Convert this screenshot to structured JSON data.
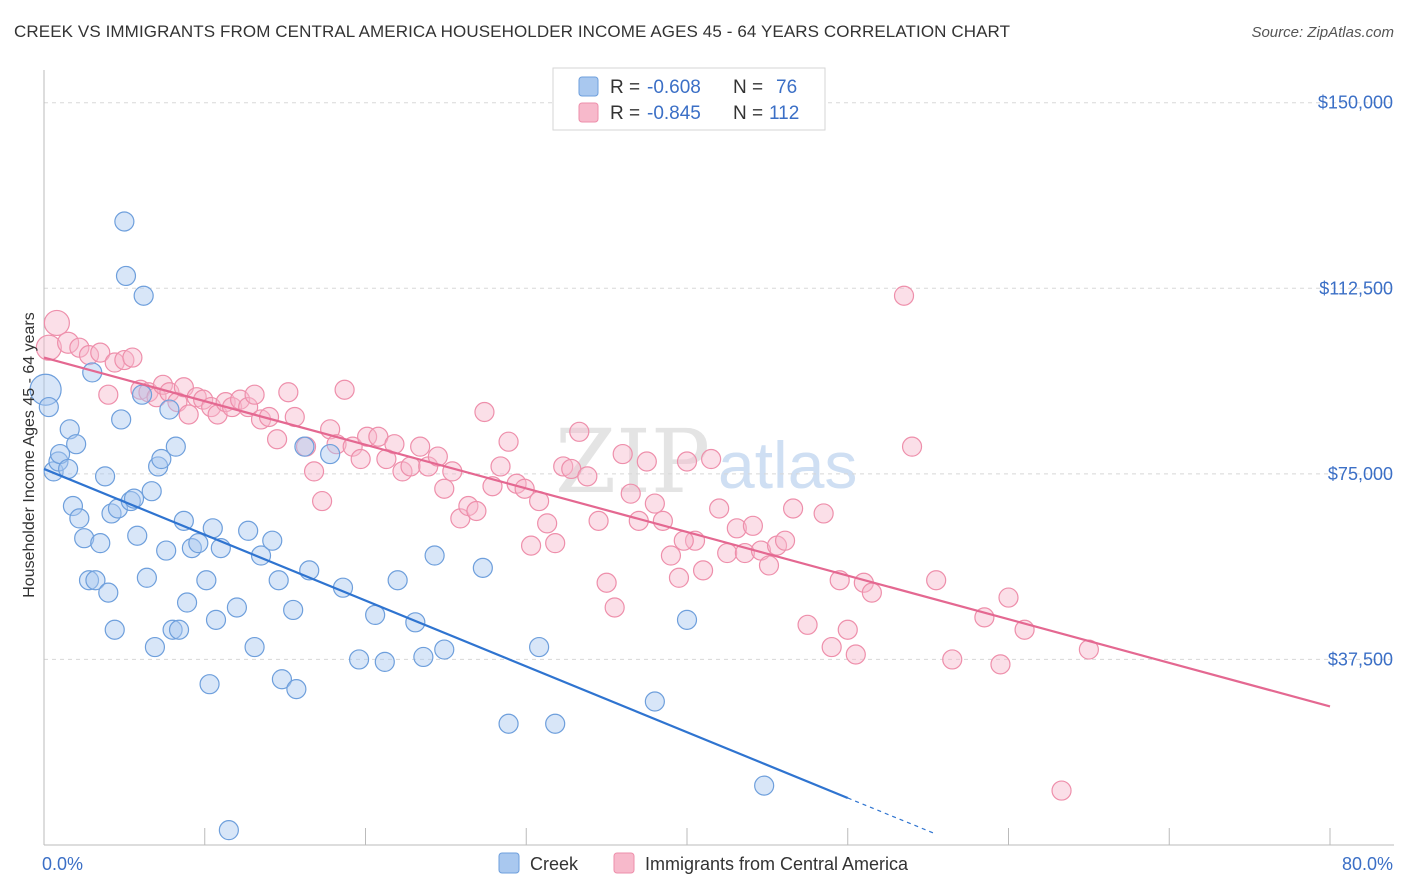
{
  "header": {
    "title": "CREEK VS IMMIGRANTS FROM CENTRAL AMERICA HOUSEHOLDER INCOME AGES 45 - 64 YEARS CORRELATION CHART",
    "source": "Source: ZipAtlas.com"
  },
  "watermark": {
    "zip": "ZIP",
    "atlas": "atlas"
  },
  "legend_top": {
    "rows": [
      {
        "r_label": "R = ",
        "r_value": "-0.608",
        "n_label": "N = ",
        "n_value": "76"
      },
      {
        "r_label": "R = ",
        "r_value": "-0.845",
        "n_label": "N = ",
        "n_value": "112"
      }
    ]
  },
  "legend_bottom": {
    "series1": "Creek",
    "series2": "Immigrants from Central America"
  },
  "colors": {
    "creek_fill": "#a9c8ef",
    "creek_stroke": "#6e9fdc",
    "creek_line": "#2f74d0",
    "ica_fill": "#f7b9cb",
    "ica_stroke": "#ee8fab",
    "ica_line": "#e46891",
    "tick_text": "#3b6fc6",
    "grid": "#d8d8d8"
  },
  "chart_data": {
    "type": "scatter",
    "title": "CREEK VS IMMIGRANTS FROM CENTRAL AMERICA HOUSEHOLDER INCOME AGES 45 - 64 YEARS CORRELATION CHART",
    "xlabel": "",
    "ylabel": "Householder Income Ages 45 - 64 years",
    "xlim": [
      0,
      80
    ],
    "ylim": [
      0,
      155000
    ],
    "x_tick_labels": [
      "0.0%",
      "80.0%"
    ],
    "y_ticks": [
      37500,
      75000,
      112500,
      150000
    ],
    "y_tick_labels": [
      "$37,500",
      "$75,000",
      "$112,500",
      "$150,000"
    ],
    "grid": true,
    "legend_position": "top-center",
    "series": [
      {
        "name": "Creek",
        "R": -0.608,
        "N": 76,
        "trend": {
          "x0": 0,
          "y0": 76000,
          "x1": 50,
          "y1": 9500,
          "dashed_to_x": 55.5,
          "dashed_to_y": 2200
        },
        "points": [
          [
            0.1,
            92000,
            26
          ],
          [
            0.3,
            88500,
            14
          ],
          [
            0.6,
            75500,
            14
          ],
          [
            0.9,
            77500,
            14
          ],
          [
            1.0,
            79000,
            14
          ],
          [
            1.5,
            76000,
            14
          ],
          [
            1.6,
            84000,
            14
          ],
          [
            1.8,
            68500,
            14
          ],
          [
            2.0,
            81000,
            14
          ],
          [
            2.2,
            66000,
            14
          ],
          [
            2.5,
            62000,
            14
          ],
          [
            2.8,
            53500,
            14
          ],
          [
            3.0,
            95500,
            14
          ],
          [
            3.2,
            53500,
            14
          ],
          [
            3.5,
            61000,
            14
          ],
          [
            3.8,
            74500,
            14
          ],
          [
            4.0,
            51000,
            14
          ],
          [
            4.2,
            67000,
            14
          ],
          [
            4.4,
            43500,
            14
          ],
          [
            4.6,
            68000,
            14
          ],
          [
            4.8,
            86000,
            14
          ],
          [
            5.0,
            126000,
            14
          ],
          [
            5.1,
            115000,
            14
          ],
          [
            5.4,
            69500,
            14
          ],
          [
            5.6,
            70000,
            14
          ],
          [
            5.8,
            62500,
            14
          ],
          [
            6.1,
            91000,
            14
          ],
          [
            6.2,
            111000,
            14
          ],
          [
            6.4,
            54000,
            14
          ],
          [
            6.7,
            71500,
            14
          ],
          [
            6.9,
            40000,
            14
          ],
          [
            7.1,
            76500,
            14
          ],
          [
            7.3,
            78000,
            14
          ],
          [
            7.6,
            59500,
            14
          ],
          [
            7.8,
            88000,
            14
          ],
          [
            8.0,
            43500,
            14
          ],
          [
            8.2,
            80500,
            14
          ],
          [
            8.4,
            43500,
            14
          ],
          [
            8.7,
            65500,
            14
          ],
          [
            8.9,
            49000,
            14
          ],
          [
            9.2,
            60000,
            14
          ],
          [
            9.6,
            61000,
            14
          ],
          [
            10.1,
            53500,
            14
          ],
          [
            10.3,
            32500,
            14
          ],
          [
            10.5,
            64000,
            14
          ],
          [
            10.7,
            45500,
            14
          ],
          [
            11.0,
            60000,
            14
          ],
          [
            11.5,
            3000,
            14
          ],
          [
            12.0,
            48000,
            14
          ],
          [
            12.7,
            63500,
            14
          ],
          [
            13.1,
            40000,
            14
          ],
          [
            13.5,
            58500,
            14
          ],
          [
            14.2,
            61500,
            14
          ],
          [
            14.6,
            53500,
            14
          ],
          [
            14.8,
            33500,
            14
          ],
          [
            15.5,
            47500,
            14
          ],
          [
            15.7,
            31500,
            14
          ],
          [
            16.2,
            80500,
            14
          ],
          [
            16.5,
            55500,
            14
          ],
          [
            17.8,
            79000,
            14
          ],
          [
            18.6,
            52000,
            14
          ],
          [
            19.6,
            37500,
            14
          ],
          [
            20.6,
            46500,
            14
          ],
          [
            21.2,
            37000,
            14
          ],
          [
            22.0,
            53500,
            14
          ],
          [
            23.1,
            45000,
            14
          ],
          [
            23.6,
            38000,
            14
          ],
          [
            24.3,
            58500,
            14
          ],
          [
            24.9,
            39500,
            14
          ],
          [
            27.3,
            56000,
            14
          ],
          [
            28.9,
            24500,
            14
          ],
          [
            30.8,
            40000,
            14
          ],
          [
            31.8,
            24500,
            14
          ],
          [
            38.0,
            29000,
            14
          ],
          [
            40.0,
            45500,
            14
          ],
          [
            44.8,
            12000,
            14
          ]
        ]
      },
      {
        "name": "Immigrants from Central America",
        "R": -0.845,
        "N": 112,
        "trend": {
          "x0": 0,
          "y0": 98500,
          "x1": 80,
          "y1": 28000
        },
        "points": [
          [
            0.3,
            100500,
            20
          ],
          [
            0.8,
            105500,
            20
          ],
          [
            1.5,
            101500,
            16
          ],
          [
            2.2,
            100500,
            14
          ],
          [
            2.8,
            99000,
            14
          ],
          [
            3.5,
            99500,
            14
          ],
          [
            4.0,
            91000,
            14
          ],
          [
            4.4,
            97500,
            14
          ],
          [
            5.0,
            98000,
            14
          ],
          [
            5.5,
            98500,
            14
          ],
          [
            6.0,
            92000,
            14
          ],
          [
            6.5,
            91500,
            14
          ],
          [
            7.0,
            90500,
            14
          ],
          [
            7.4,
            93000,
            14
          ],
          [
            7.8,
            91500,
            14
          ],
          [
            8.3,
            89500,
            14
          ],
          [
            8.7,
            92500,
            14
          ],
          [
            9.0,
            87000,
            14
          ],
          [
            9.5,
            90500,
            14
          ],
          [
            9.9,
            90000,
            14
          ],
          [
            10.4,
            88500,
            14
          ],
          [
            10.8,
            87000,
            14
          ],
          [
            11.3,
            89500,
            14
          ],
          [
            11.7,
            88500,
            14
          ],
          [
            12.2,
            90000,
            14
          ],
          [
            12.7,
            88500,
            14
          ],
          [
            13.1,
            91000,
            14
          ],
          [
            13.5,
            86000,
            14
          ],
          [
            14.0,
            86500,
            14
          ],
          [
            14.5,
            82000,
            14
          ],
          [
            15.2,
            91500,
            14
          ],
          [
            15.6,
            86500,
            14
          ],
          [
            16.3,
            80500,
            14
          ],
          [
            16.8,
            75500,
            14
          ],
          [
            17.3,
            69500,
            14
          ],
          [
            17.8,
            84000,
            14
          ],
          [
            18.2,
            81000,
            14
          ],
          [
            18.7,
            92000,
            14
          ],
          [
            19.2,
            80500,
            14
          ],
          [
            19.7,
            78000,
            14
          ],
          [
            20.1,
            82500,
            14
          ],
          [
            20.8,
            82500,
            14
          ],
          [
            21.3,
            78000,
            14
          ],
          [
            21.8,
            81000,
            14
          ],
          [
            22.3,
            75500,
            14
          ],
          [
            22.8,
            76500,
            14
          ],
          [
            23.4,
            80500,
            14
          ],
          [
            23.9,
            76500,
            14
          ],
          [
            24.5,
            78500,
            14
          ],
          [
            24.9,
            72000,
            14
          ],
          [
            25.4,
            75500,
            14
          ],
          [
            25.9,
            66000,
            14
          ],
          [
            26.4,
            68500,
            14
          ],
          [
            26.9,
            67500,
            14
          ],
          [
            27.4,
            87500,
            14
          ],
          [
            27.9,
            72500,
            14
          ],
          [
            28.4,
            76500,
            14
          ],
          [
            28.9,
            81500,
            14
          ],
          [
            29.4,
            73000,
            14
          ],
          [
            29.9,
            72000,
            14
          ],
          [
            30.3,
            60500,
            14
          ],
          [
            30.8,
            69500,
            14
          ],
          [
            31.3,
            65000,
            14
          ],
          [
            31.8,
            61000,
            14
          ],
          [
            32.3,
            76500,
            14
          ],
          [
            32.8,
            76000,
            14
          ],
          [
            33.3,
            83500,
            14
          ],
          [
            33.8,
            74500,
            14
          ],
          [
            34.5,
            65500,
            14
          ],
          [
            35.0,
            53000,
            14
          ],
          [
            35.5,
            48000,
            14
          ],
          [
            36.0,
            79000,
            14
          ],
          [
            36.5,
            71000,
            14
          ],
          [
            37.0,
            65500,
            14
          ],
          [
            37.5,
            77500,
            14
          ],
          [
            38.0,
            69000,
            14
          ],
          [
            38.5,
            65500,
            14
          ],
          [
            39.0,
            58500,
            14
          ],
          [
            39.5,
            54000,
            14
          ],
          [
            40.0,
            77500,
            14
          ],
          [
            40.5,
            61500,
            14
          ],
          [
            41.0,
            55500,
            14
          ],
          [
            41.5,
            78000,
            14
          ],
          [
            42.0,
            68000,
            14
          ],
          [
            42.5,
            59000,
            14
          ],
          [
            43.1,
            64000,
            14
          ],
          [
            43.6,
            59000,
            14
          ],
          [
            44.1,
            64500,
            14
          ],
          [
            44.6,
            59500,
            14
          ],
          [
            45.1,
            56500,
            14
          ],
          [
            45.6,
            60500,
            14
          ],
          [
            46.1,
            61500,
            14
          ],
          [
            46.6,
            68000,
            14
          ],
          [
            47.5,
            44500,
            14
          ],
          [
            48.5,
            67000,
            14
          ],
          [
            49.0,
            40000,
            14
          ],
          [
            49.5,
            53500,
            14
          ],
          [
            50.0,
            43500,
            14
          ],
          [
            50.5,
            38500,
            14
          ],
          [
            51.0,
            53000,
            14
          ],
          [
            51.5,
            51000,
            14
          ],
          [
            53.5,
            111000,
            14
          ],
          [
            54.0,
            80500,
            14
          ],
          [
            55.5,
            53500,
            14
          ],
          [
            56.5,
            37500,
            14
          ],
          [
            58.5,
            46000,
            14
          ],
          [
            59.5,
            36500,
            14
          ],
          [
            60.0,
            50000,
            14
          ],
          [
            61.0,
            43500,
            14
          ],
          [
            65.0,
            39500,
            14
          ],
          [
            63.3,
            11000,
            14
          ],
          [
            39.8,
            61500,
            14
          ]
        ]
      }
    ]
  }
}
